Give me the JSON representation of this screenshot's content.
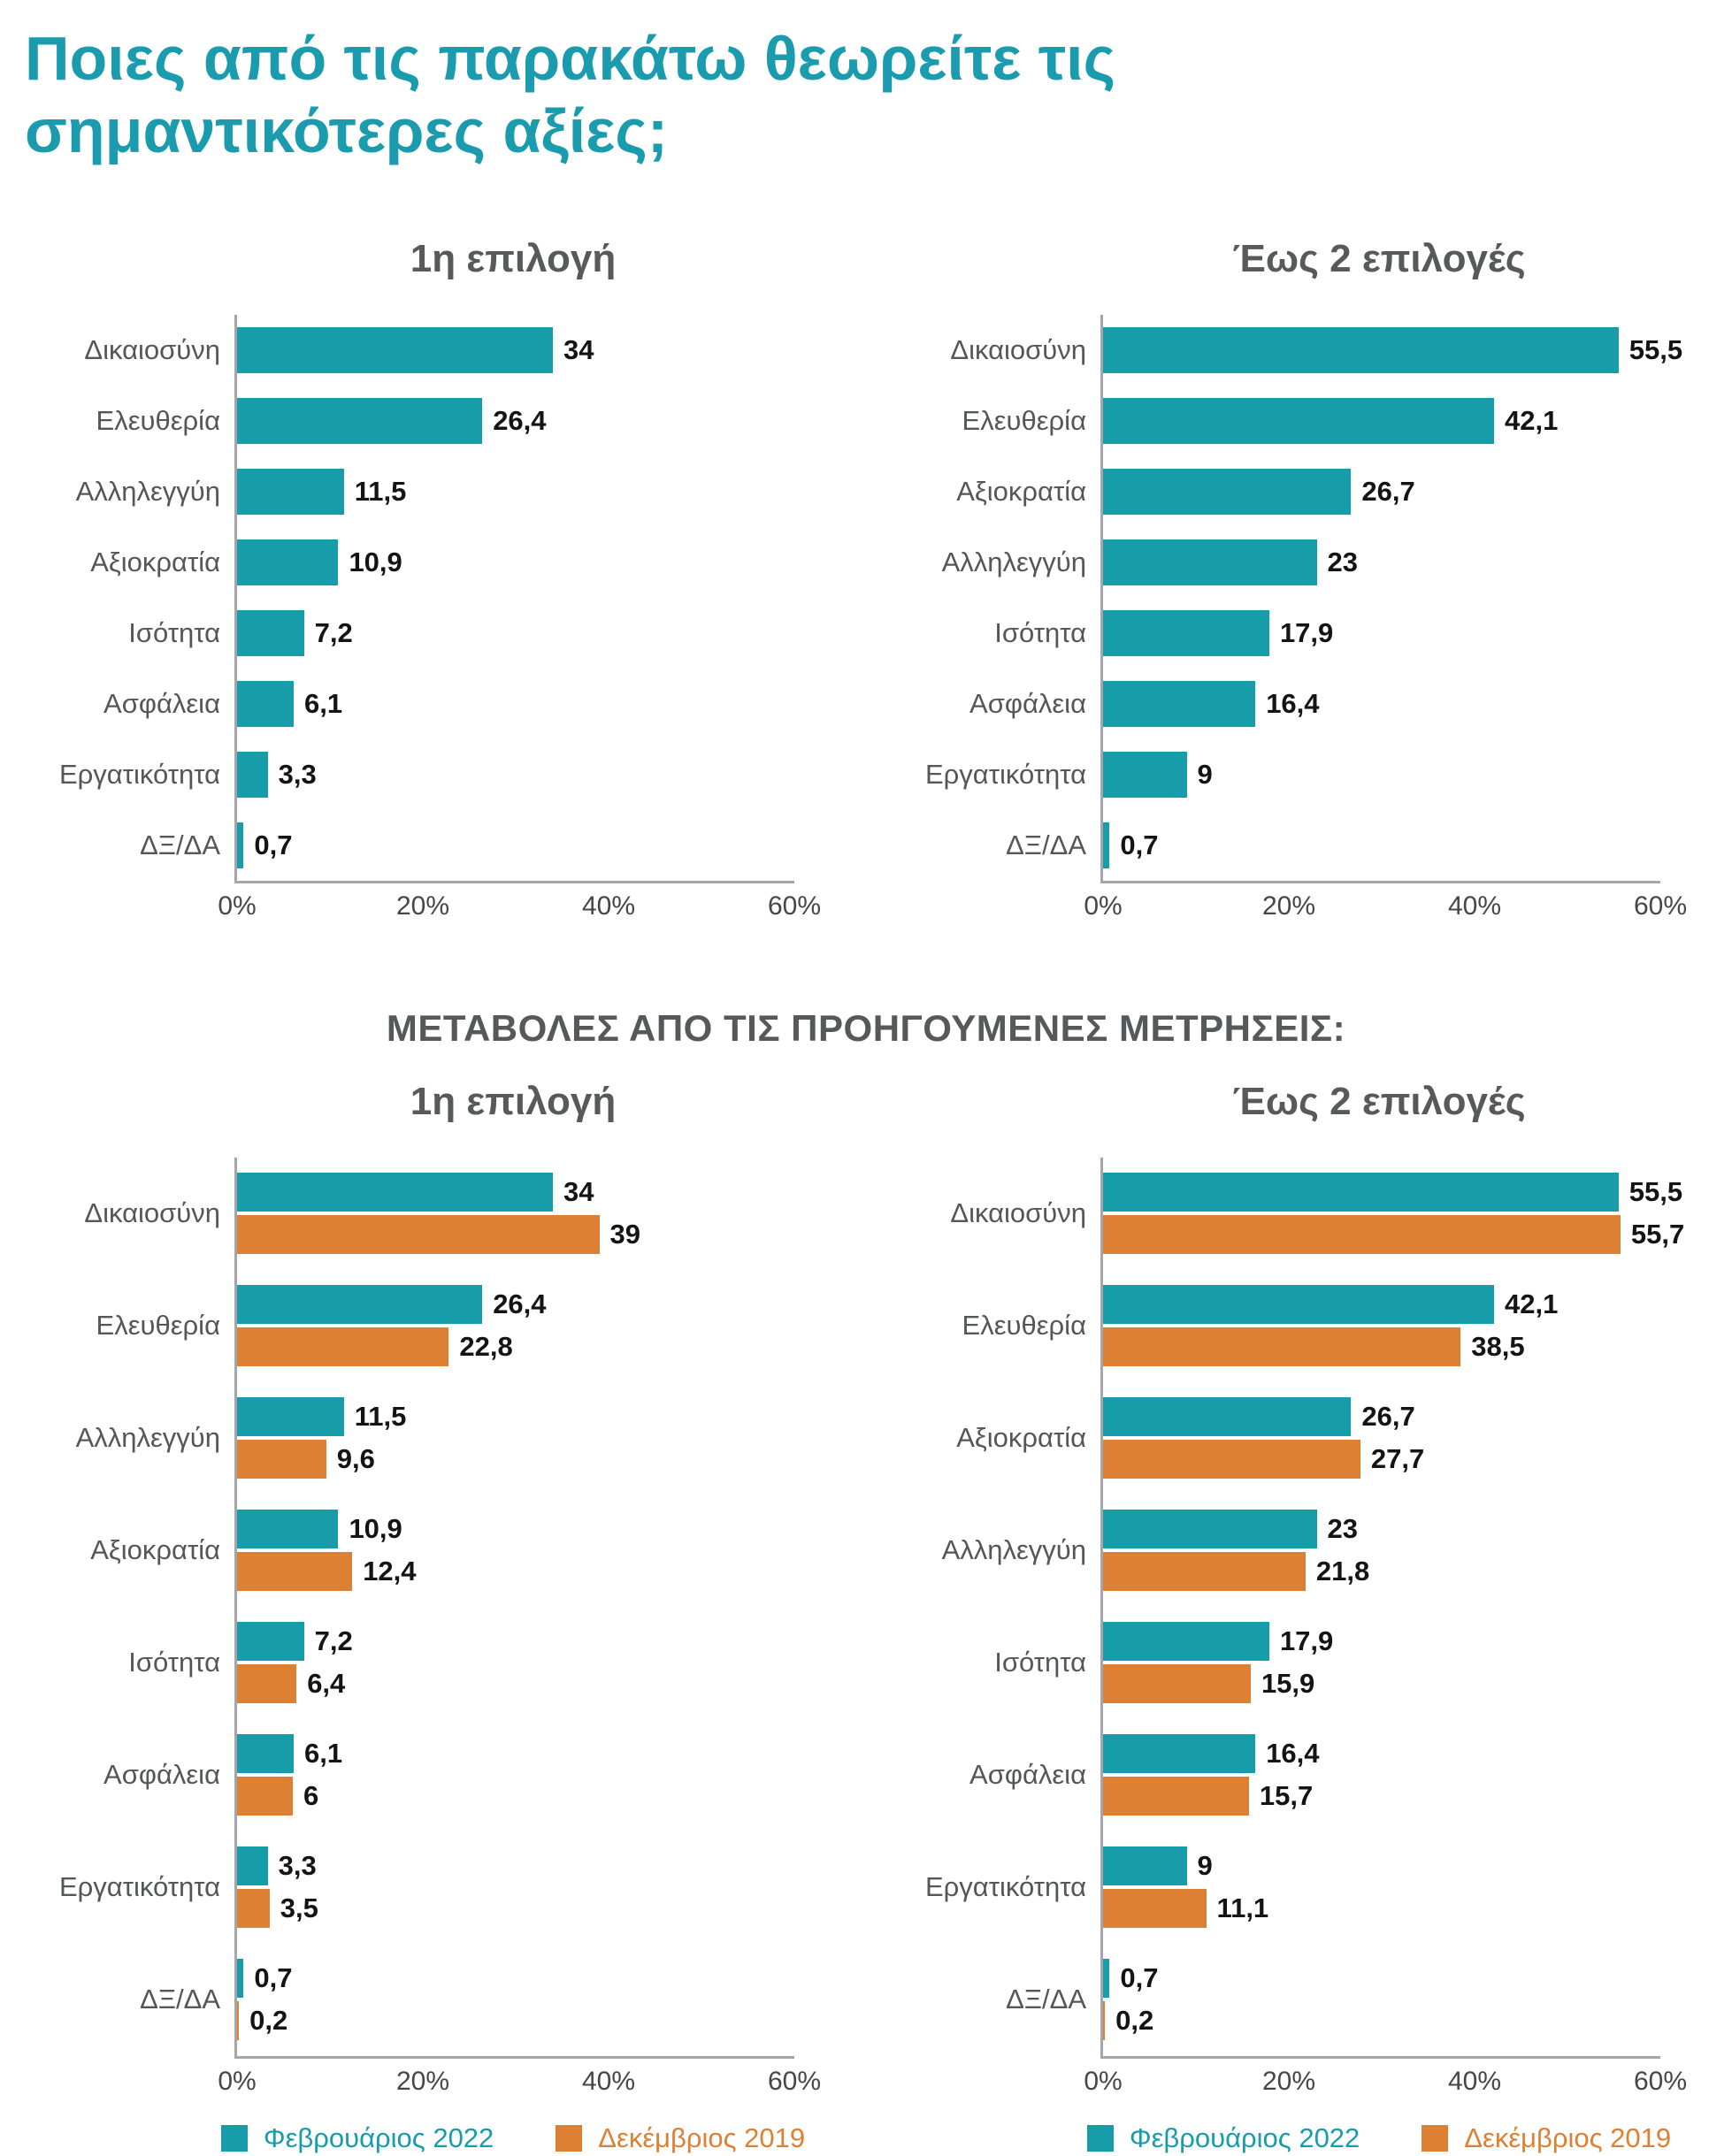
{
  "page_title": "Ποιες από τις παρακάτω θεωρείτε τις σημαντικότερες αξίες;",
  "section_header": "ΜΕΤΑΒΟΛΕΣ ΑΠΟ ΤΙΣ ΠΡΟΗΓΟΥΜΕΝΕΣ ΜΕΤΡΗΣΕΙΣ:",
  "colors": {
    "teal": "#179daa",
    "orange": "#de8034",
    "title_teal": "#1a9bae",
    "heading_gray": "#58595b",
    "axis_gray": "#a4a6a9"
  },
  "legend": {
    "items": [
      {
        "label": "Φεβρουάριος 2022",
        "color": "teal"
      },
      {
        "label": "Δεκέμβριος 2019",
        "color": "orange"
      }
    ]
  },
  "chart_data": [
    {
      "type": "bar",
      "orientation": "horizontal",
      "title": "1η επιλογή",
      "categories": [
        "Δικαιοσύνη",
        "Ελευθερία",
        "Αλληλεγγύη",
        "Αξιοκρατία",
        "Ισότητα",
        "Ασφάλεια",
        "Εργατικότητα",
        "ΔΞ/ΔΑ"
      ],
      "series": [
        {
          "name": "Φεβρουάριος 2022",
          "color": "teal",
          "values": [
            34,
            26.4,
            11.5,
            10.9,
            7.2,
            6.1,
            3.3,
            0.7
          ],
          "labels": [
            "34",
            "26,4",
            "11,5",
            "10,9",
            "7,2",
            "6,1",
            "3,3",
            "0,7"
          ]
        }
      ],
      "xlim": [
        0,
        60
      ],
      "xticks": [
        {
          "label": "0%",
          "value": 0
        },
        {
          "label": "20%",
          "value": 20
        },
        {
          "label": "40%",
          "value": 40
        },
        {
          "label": "60%",
          "value": 60
        }
      ],
      "grid": false,
      "show_legend": false
    },
    {
      "type": "bar",
      "orientation": "horizontal",
      "title": "Έως 2 επιλογές",
      "categories": [
        "Δικαιοσύνη",
        "Ελευθερία",
        "Αξιοκρατία",
        "Αλληλεγγύη",
        "Ισότητα",
        "Ασφάλεια",
        "Εργατικότητα",
        "ΔΞ/ΔΑ"
      ],
      "series": [
        {
          "name": "Φεβρουάριος 2022",
          "color": "teal",
          "values": [
            55.5,
            42.1,
            26.7,
            23,
            17.9,
            16.4,
            9,
            0.7
          ],
          "labels": [
            "55,5",
            "42,1",
            "26,7",
            "23",
            "17,9",
            "16,4",
            "9",
            "0,7"
          ]
        }
      ],
      "xlim": [
        0,
        60
      ],
      "xticks": [
        {
          "label": "0%",
          "value": 0
        },
        {
          "label": "20%",
          "value": 20
        },
        {
          "label": "40%",
          "value": 40
        },
        {
          "label": "60%",
          "value": 60
        }
      ],
      "grid": false,
      "show_legend": false
    },
    {
      "type": "bar",
      "orientation": "horizontal",
      "title": "1η επιλογή",
      "categories": [
        "Δικαιοσύνη",
        "Ελευθερία",
        "Αλληλεγγύη",
        "Αξιοκρατία",
        "Ισότητα",
        "Ασφάλεια",
        "Εργατικότητα",
        "ΔΞ/ΔΑ"
      ],
      "series": [
        {
          "name": "Φεβρουάριος 2022",
          "color": "teal",
          "values": [
            34,
            26.4,
            11.5,
            10.9,
            7.2,
            6.1,
            3.3,
            0.7
          ],
          "labels": [
            "34",
            "26,4",
            "11,5",
            "10,9",
            "7,2",
            "6,1",
            "3,3",
            "0,7"
          ]
        },
        {
          "name": "Δεκέμβριος 2019",
          "color": "orange",
          "values": [
            39,
            22.8,
            9.6,
            12.4,
            6.4,
            6,
            3.5,
            0.2
          ],
          "labels": [
            "39",
            "22,8",
            "9,6",
            "12,4",
            "6,4",
            "6",
            "3,5",
            "0,2"
          ]
        }
      ],
      "xlim": [
        0,
        60
      ],
      "xticks": [
        {
          "label": "0%",
          "value": 0
        },
        {
          "label": "20%",
          "value": 20
        },
        {
          "label": "40%",
          "value": 40
        },
        {
          "label": "60%",
          "value": 60
        }
      ],
      "grid": false,
      "show_legend": true
    },
    {
      "type": "bar",
      "orientation": "horizontal",
      "title": "Έως 2 επιλογές",
      "categories": [
        "Δικαιοσύνη",
        "Ελευθερία",
        "Αξιοκρατία",
        "Αλληλεγγύη",
        "Ισότητα",
        "Ασφάλεια",
        "Εργατικότητα",
        "ΔΞ/ΔΑ"
      ],
      "series": [
        {
          "name": "Φεβρουάριος 2022",
          "color": "teal",
          "values": [
            55.5,
            42.1,
            26.7,
            23,
            17.9,
            16.4,
            9,
            0.7
          ],
          "labels": [
            "55,5",
            "42,1",
            "26,7",
            "23",
            "17,9",
            "16,4",
            "9",
            "0,7"
          ]
        },
        {
          "name": "Δεκέμβριος 2019",
          "color": "orange",
          "values": [
            55.7,
            38.5,
            27.7,
            21.8,
            15.9,
            15.7,
            11.1,
            0.2
          ],
          "labels": [
            "55,7",
            "38,5",
            "27,7",
            "21,8",
            "15,9",
            "15,7",
            "11,1",
            "0,2"
          ]
        }
      ],
      "xlim": [
        0,
        60
      ],
      "xticks": [
        {
          "label": "0%",
          "value": 0
        },
        {
          "label": "20%",
          "value": 20
        },
        {
          "label": "40%",
          "value": 40
        },
        {
          "label": "60%",
          "value": 60
        }
      ],
      "grid": false,
      "show_legend": true
    }
  ]
}
